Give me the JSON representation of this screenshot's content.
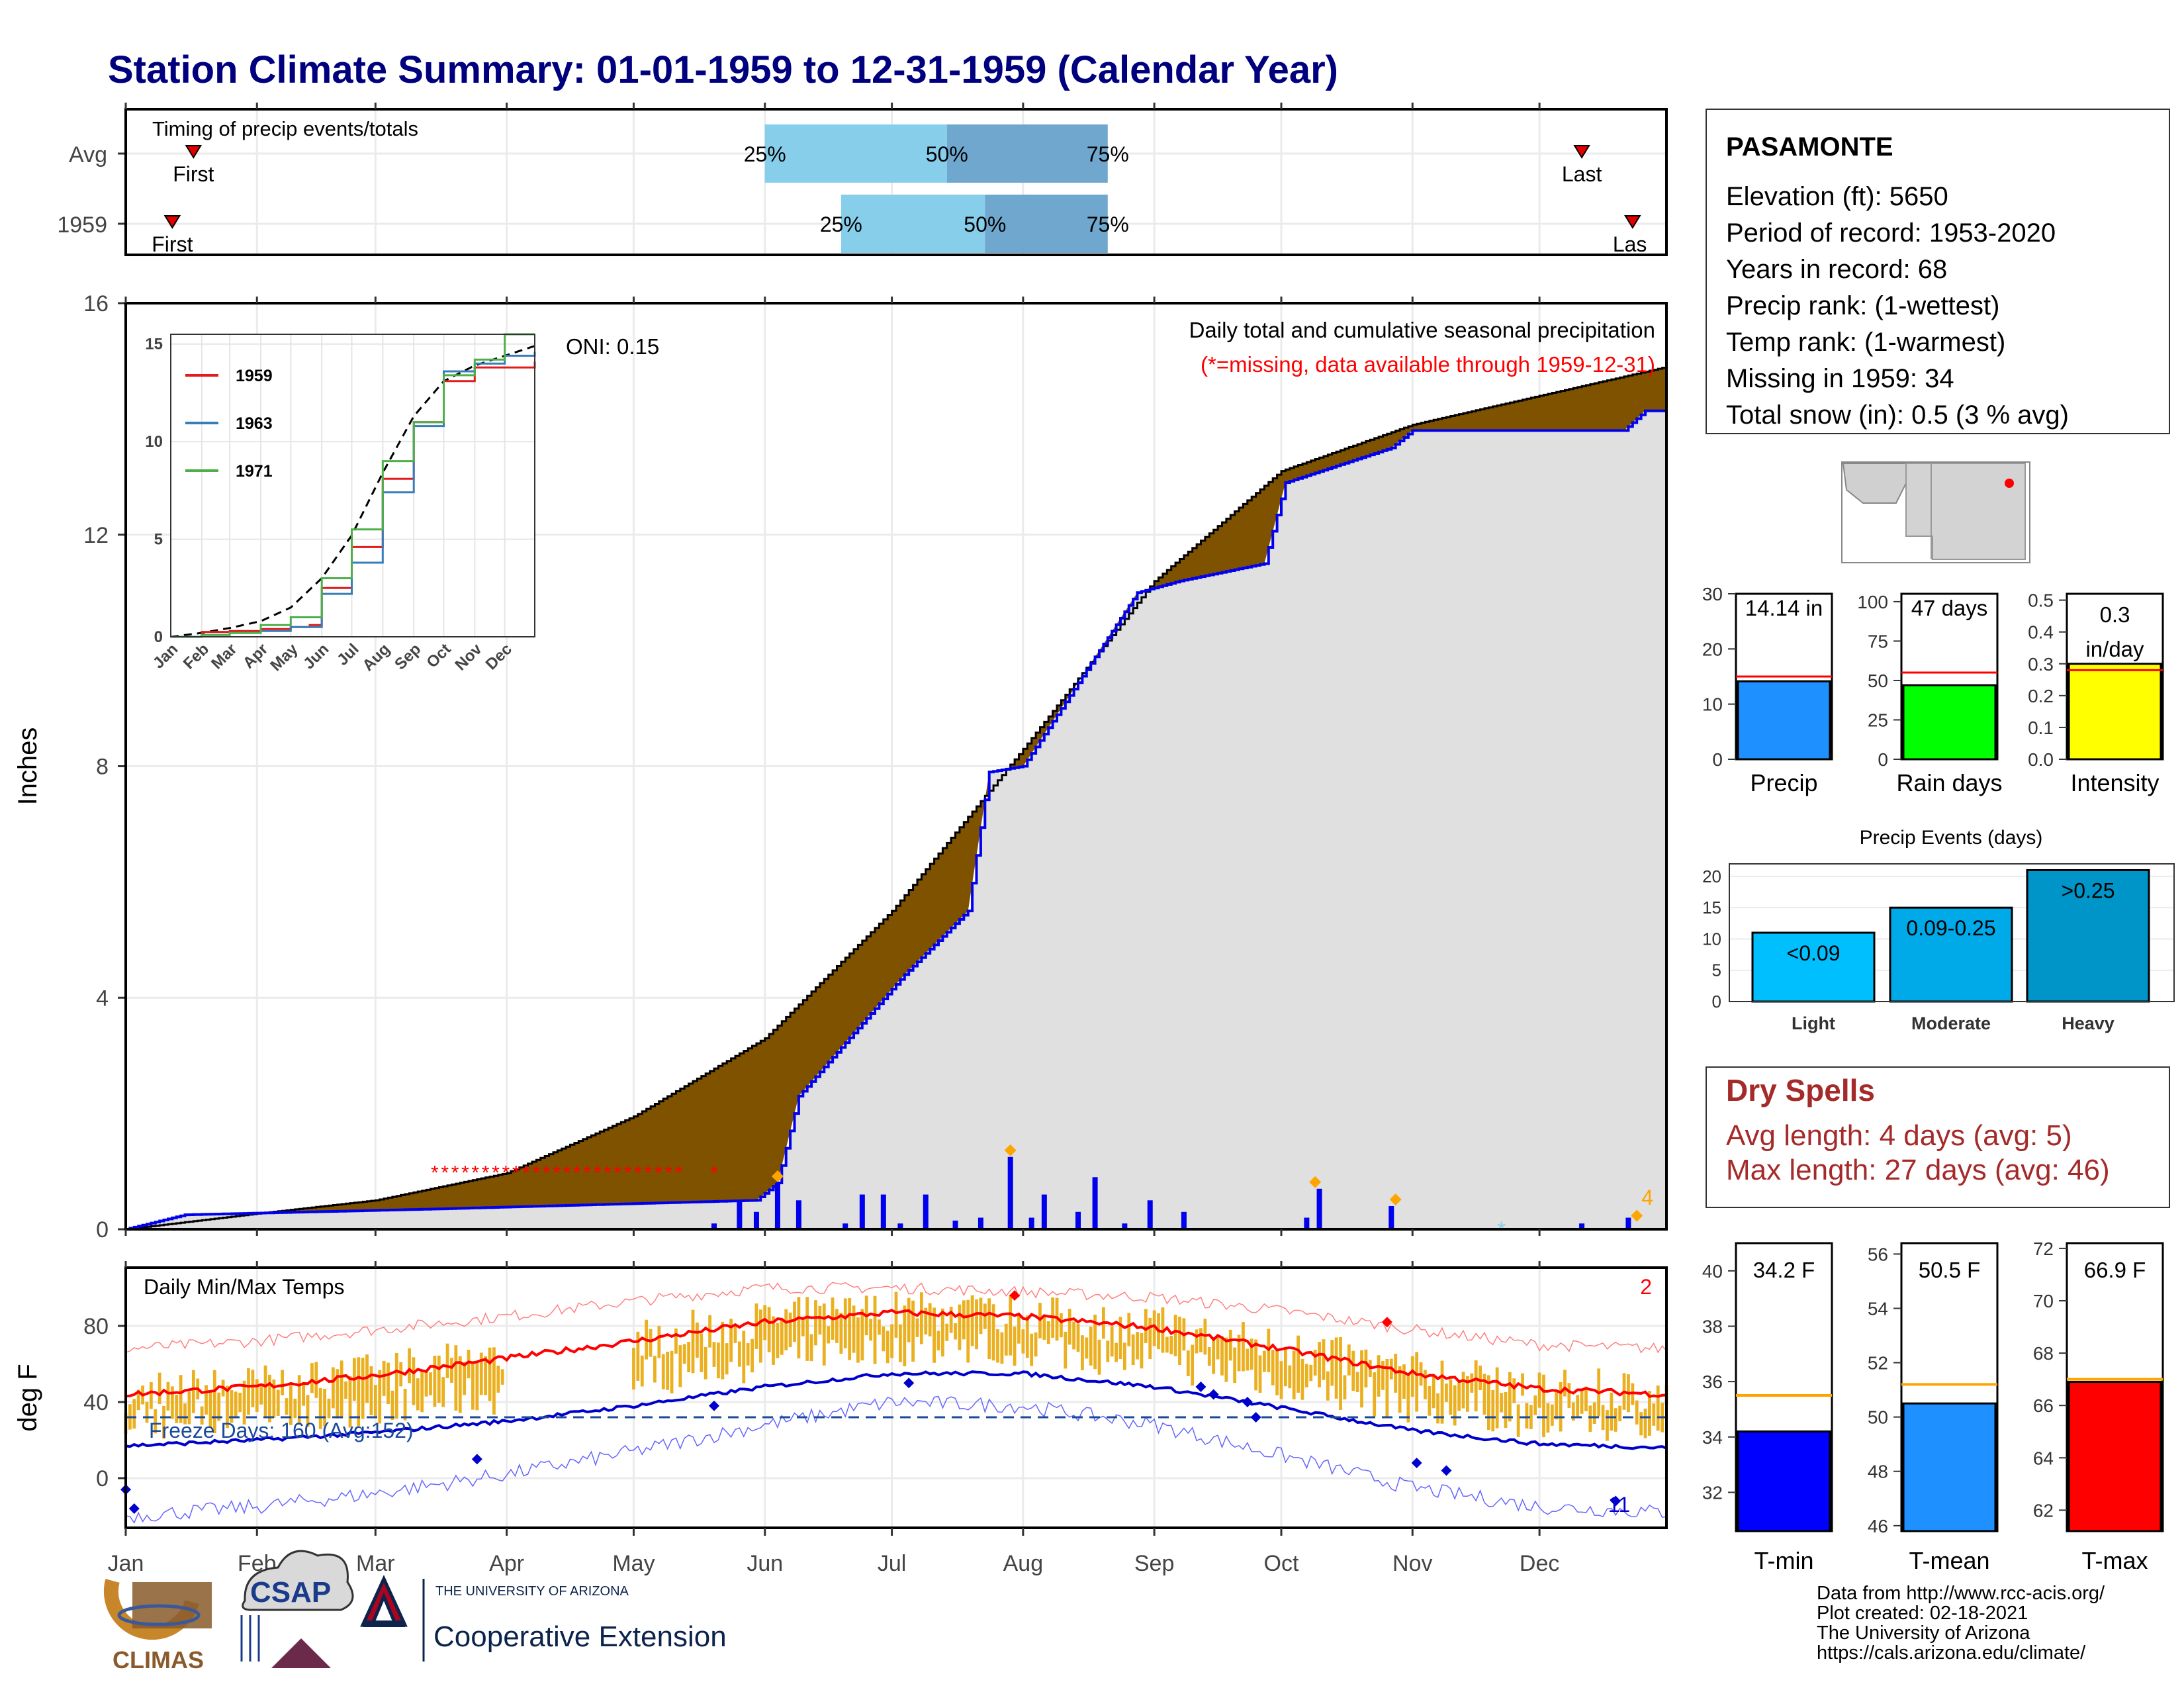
{
  "title": "Station Climate Summary: 01-01-1959 to 12-31-1959 (Calendar Year)",
  "colors": {
    "title": "#00007f",
    "brown": "#7f5200",
    "fill_gray": "#e0e0e0",
    "blue": "#0000ee",
    "red": "#ff0000",
    "orange": "#ffa500",
    "gold": "#ebb020",
    "light_blue_box": "#87ceeb",
    "mid_blue_box": "#6fa7cf",
    "dry_spell": "#a52a2a"
  },
  "months": [
    "Jan",
    "Feb",
    "Mar",
    "Apr",
    "May",
    "Jun",
    "Jul",
    "Aug",
    "Sep",
    "Oct",
    "Nov",
    "Dec"
  ],
  "timing_panel": {
    "label": "Timing of precip events/totals",
    "rows": [
      {
        "label": "Avg",
        "first_doy": 17,
        "p25_doy": 152,
        "p50_doy": 195,
        "p75_doy": 233,
        "last_doy": 345,
        "first_label": "First",
        "last_label": "Last",
        "p25_label": "25%",
        "p50_label": "50%",
        "p75_label": "75%"
      },
      {
        "label": "1959",
        "first_doy": 12,
        "p25_doy": 170,
        "p50_doy": 204,
        "p75_doy": 233,
        "last_doy": 357,
        "first_label": "First",
        "last_label": "Las",
        "p25_label": "25%",
        "p50_label": "50%",
        "p75_label": "75%"
      }
    ]
  },
  "precip_panel": {
    "ylabel": "Inches",
    "yticks": [
      0,
      4,
      8,
      12,
      16
    ],
    "ylim": [
      0,
      16
    ],
    "label1": "Daily total and cumulative seasonal precipitation",
    "label2": "(*=missing, data available through 1959-12-31)",
    "oni_label": "ONI: 0.15",
    "count_label": "4"
  },
  "inset": {
    "yticks": [
      0,
      5,
      10,
      15
    ],
    "xlabels": [
      "Jan",
      "Feb",
      "Mar",
      "Apr",
      "May",
      "Jun",
      "Jul",
      "Aug",
      "Sep",
      "Oct",
      "Nov",
      "Dec"
    ],
    "legend": [
      {
        "name": "1959",
        "color": "#e41a1c"
      },
      {
        "name": "1963",
        "color": "#377eb8"
      },
      {
        "name": "1971",
        "color": "#4daf4a"
      }
    ]
  },
  "temp_panel": {
    "ylabel": "deg F",
    "yticks": [
      0,
      40,
      80
    ],
    "label": "Daily Min/Max Temps",
    "freeze_label": "Freeze Days: 160 (Avg:152)",
    "count_hi": "2",
    "count_lo": "11",
    "freeze_line_f": 32
  },
  "station": {
    "name": "PASAMONTE",
    "lines": [
      "Elevation (ft): 5650",
      "Period of record: 1953-2020",
      "Years in record: 68",
      "Precip rank:  (1-wettest)",
      "Temp rank:  (1-warmest)",
      "Missing in 1959: 34",
      "Total snow (in): 0.5 (3 % avg)"
    ]
  },
  "summary_bars": [
    {
      "name": "Precip",
      "value": 14.14,
      "avg": 15.0,
      "label": "14.14 in",
      "yticks": [
        "0",
        "10",
        "20",
        "30"
      ],
      "ylim": [
        0,
        30
      ],
      "color": "#1e90ff"
    },
    {
      "name": "Rain days",
      "value": 47,
      "avg": 55,
      "label": "47 days",
      "yticks": [
        "0",
        "25",
        "50",
        "75",
        "100"
      ],
      "ylim": [
        0,
        105
      ],
      "color": "#00ff00"
    },
    {
      "name": "Intensity",
      "value": 0.3,
      "avg": 0.28,
      "label": "0.3",
      "label2": "in/day",
      "yticks": [
        "0.0",
        "0.1",
        "0.2",
        "0.3",
        "0.4",
        "0.5"
      ],
      "ylim": [
        0,
        0.52
      ],
      "color": "#ffff00"
    }
  ],
  "events": {
    "title": "Precip Events (days)",
    "yticks": [
      0,
      5,
      10,
      15,
      20
    ],
    "categories": [
      "Light",
      "Moderate",
      "Heavy"
    ],
    "bar_labels": [
      "<0.09",
      "0.09-0.25",
      ">0.25"
    ],
    "values": [
      11,
      15,
      21
    ],
    "colors": [
      "#00bfff",
      "#00a9e8",
      "#0095c8"
    ]
  },
  "dry_spells": {
    "title": "Dry Spells",
    "line1": "Avg length: 4 days (avg: 5)",
    "line2": "Max length: 27 days (avg: 46)"
  },
  "temp_bars": [
    {
      "name": "T-min",
      "value": 34.2,
      "avg": 35.5,
      "label": "34.2 F",
      "yticks": [
        "32",
        "34",
        "36",
        "38",
        "40"
      ],
      "ylim": [
        30.6,
        41
      ],
      "color": "#0000ff"
    },
    {
      "name": "T-mean",
      "value": 50.5,
      "avg": 51.2,
      "label": "50.5 F",
      "yticks": [
        "46",
        "48",
        "50",
        "52",
        "54",
        "56"
      ],
      "ylim": [
        45.8,
        56.4
      ],
      "color": "#1e90ff"
    },
    {
      "name": "T-max",
      "value": 66.9,
      "avg": 67.0,
      "label": "66.9 F",
      "yticks": [
        "62",
        "64",
        "66",
        "68",
        "70",
        "72"
      ],
      "ylim": [
        61.2,
        72.2
      ],
      "color": "#ff0000"
    }
  ],
  "credits": [
    "Data from http://www.rcc-acis.org/",
    "Plot created: 02-18-2021",
    "The University of Arizona",
    "https://cals.arizona.edu/climate/"
  ],
  "logos": {
    "climas": "CLIMAS",
    "csap": "CSAP",
    "ua_small": "THE UNIVERSITY OF ARIZONA",
    "ua_big": "Cooperative Extension"
  },
  "chart_data": [
    {
      "type": "area",
      "title": "Daily total and cumulative seasonal precipitation",
      "ylabel": "Inches",
      "ylim": [
        0,
        16
      ],
      "x_unit": "day of year",
      "series": [
        {
          "name": "Cumulative average",
          "x": [
            1,
            32,
            60,
            91,
            121,
            152,
            182,
            213,
            244,
            274,
            305,
            335,
            365
          ],
          "values": [
            0,
            0.27,
            0.5,
            0.97,
            1.95,
            3.3,
            5.5,
            8.3,
            11.2,
            13.1,
            13.9,
            14.4,
            14.9
          ]
        },
        {
          "name": "1959",
          "x": [
            1,
            15,
            74,
            150,
            155,
            160,
            185,
            200,
            205,
            213,
            240,
            250,
            270,
            275,
            300,
            305,
            355,
            360,
            365
          ],
          "values": [
            0,
            0.25,
            0.35,
            0.5,
            0.8,
            2.3,
            4.4,
            5.5,
            7.9,
            8.0,
            11.0,
            11.2,
            11.5,
            12.9,
            13.5,
            13.8,
            13.8,
            14.14,
            14.14
          ]
        },
        {
          "name": "Daily precip",
          "x": [
            140,
            146,
            150,
            155,
            160,
            171,
            175,
            180,
            184,
            190,
            197,
            203,
            210,
            215,
            218,
            226,
            230,
            237,
            243,
            251,
            280,
            283,
            300,
            345,
            356
          ],
          "values": [
            0.1,
            0.5,
            0.3,
            0.8,
            0.5,
            0.1,
            0.6,
            0.6,
            0.1,
            0.6,
            0.15,
            0.2,
            1.25,
            0.2,
            0.6,
            0.3,
            0.9,
            0.1,
            0.5,
            0.3,
            0.2,
            0.7,
            0.4,
            0.1,
            0.2
          ]
        }
      ]
    },
    {
      "type": "line",
      "title": "Daily Min/Max Temps",
      "ylabel": "deg F",
      "x_unit": "day of year",
      "series": [
        {
          "name": "Avg max",
          "x": [
            1,
            32,
            60,
            91,
            121,
            152,
            182,
            213,
            244,
            274,
            305,
            335,
            365
          ],
          "values": [
            44,
            48,
            54,
            63,
            72,
            82,
            87,
            85,
            79,
            68,
            55,
            47,
            44
          ]
        },
        {
          "name": "Avg min",
          "x": [
            1,
            32,
            60,
            91,
            121,
            152,
            182,
            213,
            244,
            274,
            305,
            335,
            365
          ],
          "values": [
            17,
            20,
            24,
            30,
            38,
            48,
            55,
            55,
            48,
            37,
            25,
            18,
            16
          ]
        },
        {
          "name": "Record max",
          "x": [
            1,
            32,
            60,
            91,
            121,
            152,
            182,
            213,
            244,
            274,
            305,
            335,
            365
          ],
          "values": [
            68,
            72,
            78,
            85,
            93,
            100,
            100,
            98,
            95,
            88,
            78,
            70,
            68
          ]
        },
        {
          "name": "Record min",
          "x": [
            1,
            32,
            60,
            91,
            121,
            152,
            182,
            213,
            244,
            274,
            305,
            335,
            365
          ],
          "values": [
            -20,
            -15,
            -8,
            2,
            14,
            28,
            40,
            38,
            28,
            12,
            -5,
            -15,
            -18
          ]
        }
      ]
    }
  ]
}
